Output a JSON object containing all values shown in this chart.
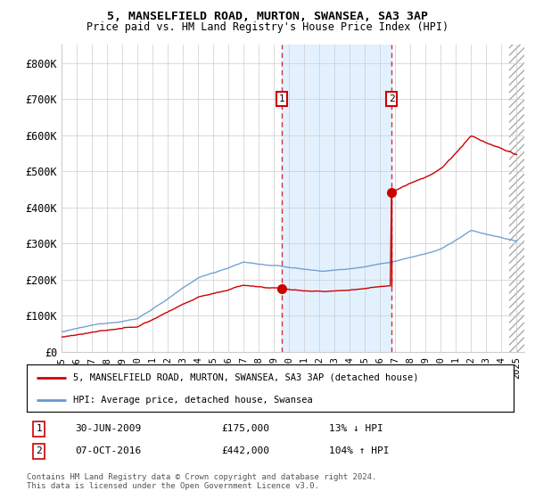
{
  "title1": "5, MANSELFIELD ROAD, MURTON, SWANSEA, SA3 3AP",
  "title2": "Price paid vs. HM Land Registry's House Price Index (HPI)",
  "ylim": [
    0,
    850000
  ],
  "yticks": [
    0,
    100000,
    200000,
    300000,
    400000,
    500000,
    600000,
    700000,
    800000
  ],
  "ytick_labels": [
    "£0",
    "£100K",
    "£200K",
    "£300K",
    "£400K",
    "£500K",
    "£600K",
    "£700K",
    "£800K"
  ],
  "xlim_start": 1995.0,
  "xlim_end": 2025.5,
  "purchase1_x": 2009.5,
  "purchase1_y": 175000,
  "purchase1_date": "30-JUN-2009",
  "purchase1_price": "£175,000",
  "purchase1_hpi": "13% ↓ HPI",
  "purchase2_x": 2016.75,
  "purchase2_y": 442000,
  "purchase2_date": "07-OCT-2016",
  "purchase2_price": "£442,000",
  "purchase2_hpi": "104% ↑ HPI",
  "red_line_color": "#cc0000",
  "blue_line_color": "#6699cc",
  "shaded_color": "#ddeeff",
  "legend_label1": "5, MANSELFIELD ROAD, MURTON, SWANSEA, SA3 3AP (detached house)",
  "legend_label2": "HPI: Average price, detached house, Swansea",
  "footnote": "Contains HM Land Registry data © Crown copyright and database right 2024.\nThis data is licensed under the Open Government Licence v3.0.",
  "background_color": "#ffffff",
  "grid_color": "#cccccc",
  "xticks": [
    1995,
    1996,
    1997,
    1998,
    1999,
    2000,
    2001,
    2002,
    2003,
    2004,
    2005,
    2006,
    2007,
    2008,
    2009,
    2010,
    2011,
    2012,
    2013,
    2014,
    2015,
    2016,
    2017,
    2018,
    2019,
    2020,
    2021,
    2022,
    2023,
    2024,
    2025
  ]
}
